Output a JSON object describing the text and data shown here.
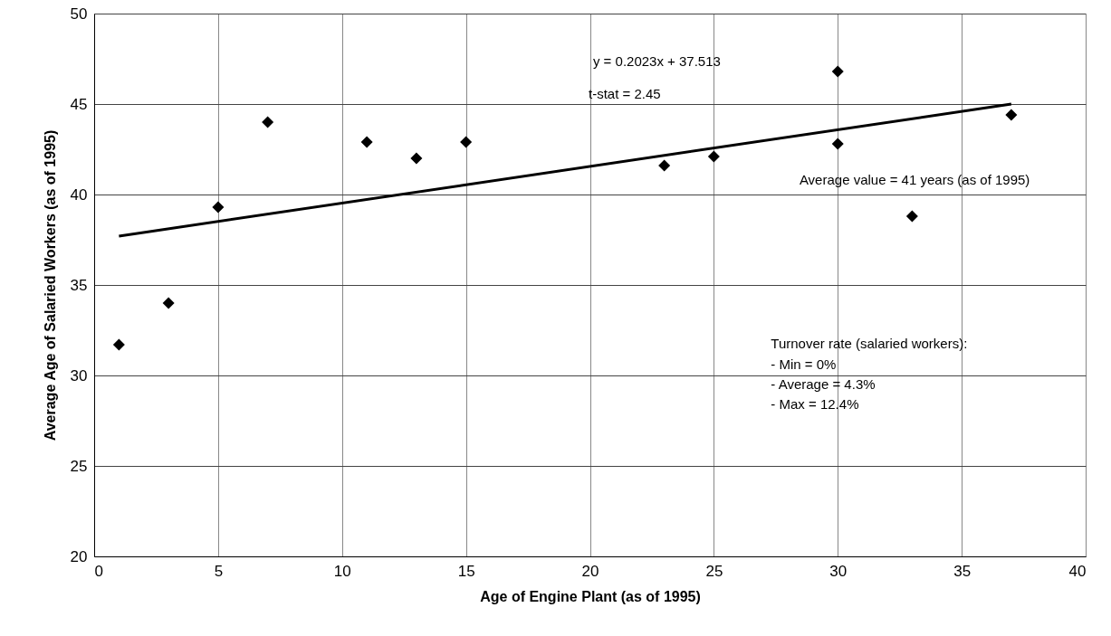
{
  "chart_data": {
    "type": "scatter",
    "xlabel": "Age of Engine Plant (as of 1995)",
    "ylabel": "Average Age of Salaried Workers (as of 1995)",
    "xlim": [
      0,
      40
    ],
    "xticks": [
      0,
      5,
      10,
      15,
      20,
      25,
      30,
      35,
      40
    ],
    "ylim": [
      20,
      50
    ],
    "yticks": [
      20,
      25,
      30,
      35,
      40,
      45,
      50
    ],
    "grid": true,
    "series": [
      {
        "color": "#000000",
        "marker": "diamond",
        "x": [
          1,
          3,
          5,
          7,
          11,
          13,
          15,
          23,
          25,
          30,
          30,
          33,
          37
        ],
        "values": [
          31.7,
          34,
          39.3,
          44,
          42.9,
          42,
          42.9,
          41.6,
          42.1,
          46.8,
          42.8,
          38.8,
          44.4
        ]
      },
      {
        "type": "line",
        "color": "#000000",
        "marker": "none",
        "x": [
          1,
          37
        ],
        "values": [
          37.7,
          45.0
        ]
      }
    ],
    "annotations": [
      "y = 0.2023x + 37.513",
      "t-stat = 2.45",
      "Average value = 41 years (as of 1995)",
      "Turnover rate (salaried  workers):",
      "- Min = 0%",
      "- Average = 4.3%",
      "- Max = 12.4%"
    ]
  }
}
